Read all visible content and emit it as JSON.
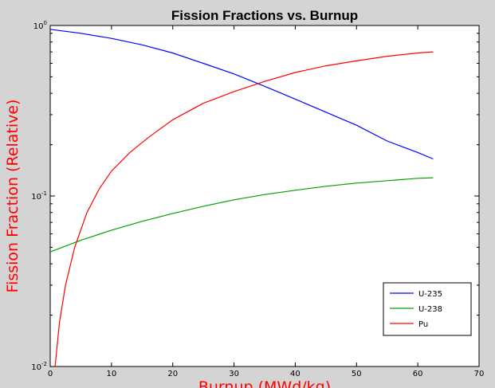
{
  "chart_data": {
    "type": "line",
    "title": "Fission Fractions vs. Burnup",
    "ylabel": "Fission Fraction (Relative)",
    "xlabel": "Burnup (MWd/kg)",
    "y_scale": "log",
    "xlim": [
      0,
      70
    ],
    "ylim": [
      0.01,
      1
    ],
    "x_ticks": [
      0,
      10,
      20,
      30,
      40,
      50,
      60,
      70
    ],
    "y_ticks": [
      {
        "base": "10",
        "exp": "-2"
      },
      {
        "base": "10",
        "exp": "-1"
      },
      {
        "base": "10",
        "exp": "0"
      }
    ],
    "label_color": "#ff0000",
    "legend_position": "bottom-right",
    "series": [
      {
        "name": "U-235",
        "color": "#0000ff",
        "x": [
          0,
          5,
          10,
          15,
          20,
          25,
          30,
          35,
          40,
          45,
          50,
          55,
          60,
          62.5
        ],
        "y": [
          0.95,
          0.9,
          0.84,
          0.77,
          0.69,
          0.6,
          0.52,
          0.44,
          0.37,
          0.31,
          0.26,
          0.21,
          0.18,
          0.165
        ]
      },
      {
        "name": "U-238",
        "color": "#00a000",
        "x": [
          0,
          5,
          10,
          15,
          20,
          25,
          30,
          35,
          40,
          45,
          50,
          55,
          60,
          62.5
        ],
        "y": [
          0.047,
          0.055,
          0.063,
          0.071,
          0.079,
          0.087,
          0.095,
          0.102,
          0.108,
          0.114,
          0.119,
          0.123,
          0.127,
          0.128
        ]
      },
      {
        "name": "Pu",
        "color": "#ff0000",
        "x": [
          0.8,
          1.5,
          2.5,
          4,
          6,
          8,
          10,
          13,
          16,
          20,
          25,
          30,
          35,
          40,
          45,
          50,
          55,
          60,
          62.5
        ],
        "y": [
          0.01,
          0.018,
          0.03,
          0.05,
          0.08,
          0.11,
          0.14,
          0.18,
          0.22,
          0.28,
          0.35,
          0.41,
          0.47,
          0.53,
          0.58,
          0.62,
          0.66,
          0.69,
          0.7
        ]
      }
    ]
  }
}
